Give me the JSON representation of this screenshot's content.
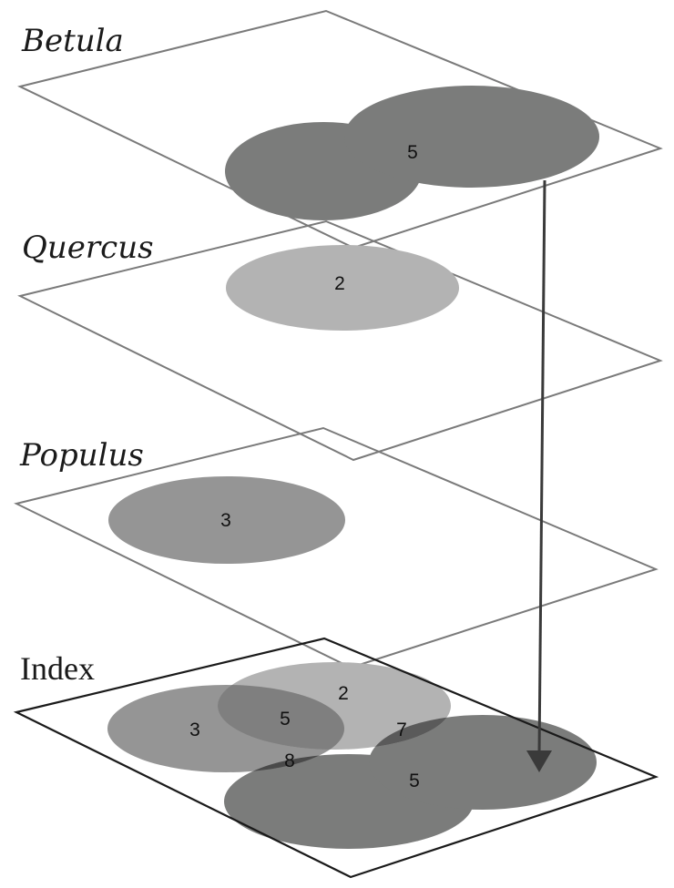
{
  "layers": [
    {
      "title": "Betula",
      "value": "5"
    },
    {
      "title": "Quercus",
      "value": "2"
    },
    {
      "title": "Populus",
      "value": "3"
    }
  ],
  "index": {
    "title": "Index",
    "values": {
      "populus_only": "3",
      "quercus_only": "2",
      "populus_quercus": "5",
      "quercus_betula": "7",
      "populus_betula": "8",
      "betula_only": "5"
    }
  },
  "colors": {
    "betula": "#7b7c7b",
    "quercus": "#b3b3b3",
    "populus": "#959595",
    "populus_quercus": "#7f7f7f",
    "quercus_betula": "#5a5a5a",
    "populus_betula": "#4a4a4a",
    "plane_outline": "#7a7a7a",
    "index_outline": "#1a1a1a",
    "arrow": "#3a3a3a"
  }
}
